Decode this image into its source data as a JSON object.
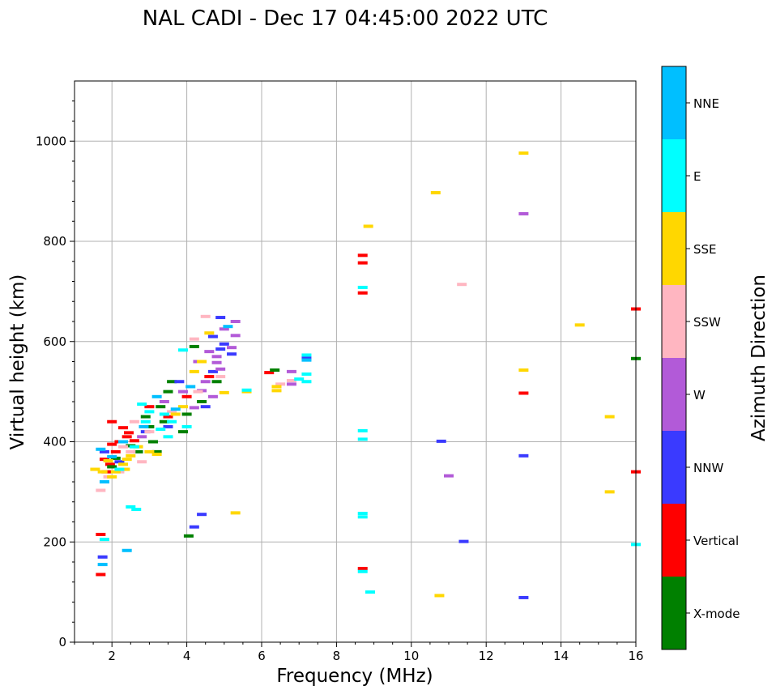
{
  "chart_data": {
    "type": "scatter",
    "title": "NAL CADI - Dec 17 04:45:00 2022 UTC",
    "xlabel": "Frequency (MHz)",
    "ylabel": "Virtual height (km)",
    "xlim": [
      1,
      16
    ],
    "ylim": [
      0,
      1120
    ],
    "xticks": [
      "2",
      "4",
      "6",
      "8",
      "10",
      "12",
      "14",
      "16"
    ],
    "yticks": [
      "0",
      "200",
      "400",
      "600",
      "800",
      "1000"
    ],
    "grid": true,
    "colorbar": {
      "label": "Azimuth Direction",
      "categories": [
        {
          "name": "X-mode",
          "color": "#008000"
        },
        {
          "name": "Vertical",
          "color": "#ff0000"
        },
        {
          "name": "NNW",
          "color": "#3a3aff"
        },
        {
          "name": "W",
          "color": "#b25ad8"
        },
        {
          "name": "SSW",
          "color": "#ffb6c1"
        },
        {
          "name": "SSE",
          "color": "#ffd700"
        },
        {
          "name": "E",
          "color": "#00ffff"
        },
        {
          "name": "NNE",
          "color": "#00bfff"
        }
      ]
    },
    "series": [
      {
        "name": "Vertical",
        "points": [
          [
            8.7,
            772
          ],
          [
            8.7,
            757
          ],
          [
            8.7,
            697
          ],
          [
            8.7,
            147
          ],
          [
            13.0,
            497
          ],
          [
            16.0,
            665
          ],
          [
            16.0,
            340
          ],
          [
            2.45,
            418
          ],
          [
            2.4,
            410
          ],
          [
            2.3,
            428
          ],
          [
            2.1,
            380
          ],
          [
            2.0,
            395
          ],
          [
            1.95,
            355
          ],
          [
            1.8,
            365
          ],
          [
            2.2,
            400
          ],
          [
            1.7,
            135
          ],
          [
            1.7,
            215
          ],
          [
            2.0,
            440
          ],
          [
            3.0,
            470
          ],
          [
            3.5,
            450
          ],
          [
            4.0,
            490
          ],
          [
            4.6,
            530
          ],
          [
            6.2,
            538
          ],
          [
            2.6,
            402
          ],
          [
            1.85,
            340
          ]
        ]
      },
      {
        "name": "X-mode",
        "points": [
          [
            4.05,
            212
          ],
          [
            2.9,
            450
          ],
          [
            3.3,
            470
          ],
          [
            3.5,
            500
          ],
          [
            4.2,
            590
          ],
          [
            3.9,
            420
          ],
          [
            3.6,
            520
          ],
          [
            3.2,
            380
          ],
          [
            4.0,
            455
          ],
          [
            2.7,
            380
          ],
          [
            6.35,
            543
          ],
          [
            3.1,
            400
          ],
          [
            2.5,
            392
          ],
          [
            4.4,
            480
          ],
          [
            3.0,
            430
          ],
          [
            16.0,
            566
          ],
          [
            2.1,
            367
          ],
          [
            3.4,
            440
          ],
          [
            4.8,
            520
          ],
          [
            2.0,
            350
          ]
        ]
      },
      {
        "name": "NNW",
        "points": [
          [
            10.8,
            401
          ],
          [
            11.4,
            201
          ],
          [
            13.0,
            89
          ],
          [
            13.0,
            372
          ],
          [
            4.4,
            255
          ],
          [
            4.2,
            230
          ],
          [
            7.2,
            567
          ],
          [
            4.7,
            540
          ],
          [
            4.9,
            585
          ],
          [
            5.0,
            595
          ],
          [
            4.5,
            470
          ],
          [
            3.5,
            430
          ],
          [
            2.2,
            360
          ],
          [
            1.75,
            170
          ],
          [
            4.9,
            648
          ],
          [
            4.7,
            610
          ],
          [
            5.2,
            575
          ],
          [
            3.8,
            520
          ],
          [
            2.9,
            420
          ],
          [
            1.8,
            380
          ]
        ]
      },
      {
        "name": "W",
        "points": [
          [
            13.0,
            855
          ],
          [
            11.0,
            332
          ],
          [
            6.8,
            540
          ],
          [
            6.8,
            515
          ],
          [
            5.3,
            612
          ],
          [
            5.2,
            588
          ],
          [
            4.6,
            580
          ],
          [
            4.8,
            570
          ],
          [
            4.8,
            558
          ],
          [
            5.3,
            640
          ],
          [
            4.4,
            502
          ],
          [
            4.5,
            520
          ],
          [
            4.9,
            545
          ],
          [
            3.9,
            500
          ],
          [
            4.2,
            468
          ],
          [
            4.7,
            490
          ],
          [
            4.3,
            560
          ],
          [
            5.0,
            625
          ],
          [
            2.8,
            410
          ],
          [
            3.4,
            480
          ]
        ]
      },
      {
        "name": "SSW",
        "points": [
          [
            11.35,
            714
          ],
          [
            6.8,
            522
          ],
          [
            6.5,
            515
          ],
          [
            4.5,
            650
          ],
          [
            4.2,
            605
          ],
          [
            2.2,
            340
          ],
          [
            2.5,
            380
          ],
          [
            1.7,
            303
          ],
          [
            3.0,
            420
          ],
          [
            2.3,
            390
          ],
          [
            4.3,
            500
          ],
          [
            2.8,
            360
          ],
          [
            4.9,
            530
          ],
          [
            1.9,
            330
          ],
          [
            3.6,
            460
          ],
          [
            2.6,
            440
          ]
        ]
      },
      {
        "name": "SSE",
        "points": [
          [
            13.0,
            976
          ],
          [
            10.65,
            897
          ],
          [
            8.85,
            830
          ],
          [
            14.5,
            633
          ],
          [
            13.0,
            543
          ],
          [
            15.3,
            450
          ],
          [
            15.3,
            300
          ],
          [
            10.75,
            93
          ],
          [
            5.3,
            258
          ],
          [
            5.6,
            500
          ],
          [
            6.4,
            510
          ],
          [
            6.4,
            502
          ],
          [
            2.4,
            365
          ],
          [
            2.35,
            345
          ],
          [
            2.1,
            340
          ],
          [
            2.3,
            355
          ],
          [
            1.75,
            340
          ],
          [
            2.0,
            330
          ],
          [
            1.55,
            345
          ],
          [
            3.2,
            375
          ],
          [
            3.9,
            470
          ],
          [
            4.6,
            617
          ],
          [
            4.2,
            540
          ],
          [
            3.7,
            455
          ],
          [
            2.7,
            390
          ],
          [
            5.0,
            498
          ],
          [
            1.9,
            362
          ],
          [
            2.5,
            372
          ],
          [
            4.4,
            560
          ],
          [
            3.0,
            380
          ]
        ]
      },
      {
        "name": "E",
        "points": [
          [
            8.7,
            708
          ],
          [
            8.7,
            422
          ],
          [
            8.7,
            405
          ],
          [
            8.7,
            257
          ],
          [
            8.7,
            250
          ],
          [
            8.7,
            141
          ],
          [
            8.9,
            100
          ],
          [
            16.0,
            195
          ],
          [
            7.2,
            573
          ],
          [
            7.2,
            535
          ],
          [
            7.2,
            520
          ],
          [
            7.0,
            525
          ],
          [
            5.6,
            503
          ],
          [
            3.9,
            583
          ],
          [
            2.9,
            440
          ],
          [
            3.3,
            425
          ],
          [
            3.5,
            410
          ],
          [
            2.6,
            390
          ],
          [
            1.8,
            205
          ],
          [
            2.5,
            270
          ],
          [
            2.65,
            265
          ],
          [
            3.0,
            460
          ],
          [
            3.6,
            440
          ],
          [
            4.0,
            430
          ],
          [
            2.2,
            345
          ],
          [
            2.8,
            475
          ],
          [
            3.4,
            455
          ]
        ]
      },
      {
        "name": "NNE",
        "points": [
          [
            1.75,
            155
          ],
          [
            1.7,
            385
          ],
          [
            2.3,
            400
          ],
          [
            3.2,
            490
          ],
          [
            7.2,
            563
          ],
          [
            5.1,
            630
          ],
          [
            2.85,
            430
          ],
          [
            2.0,
            370
          ],
          [
            3.7,
            465
          ],
          [
            1.8,
            320
          ],
          [
            4.1,
            510
          ],
          [
            2.4,
            183
          ]
        ]
      }
    ]
  }
}
